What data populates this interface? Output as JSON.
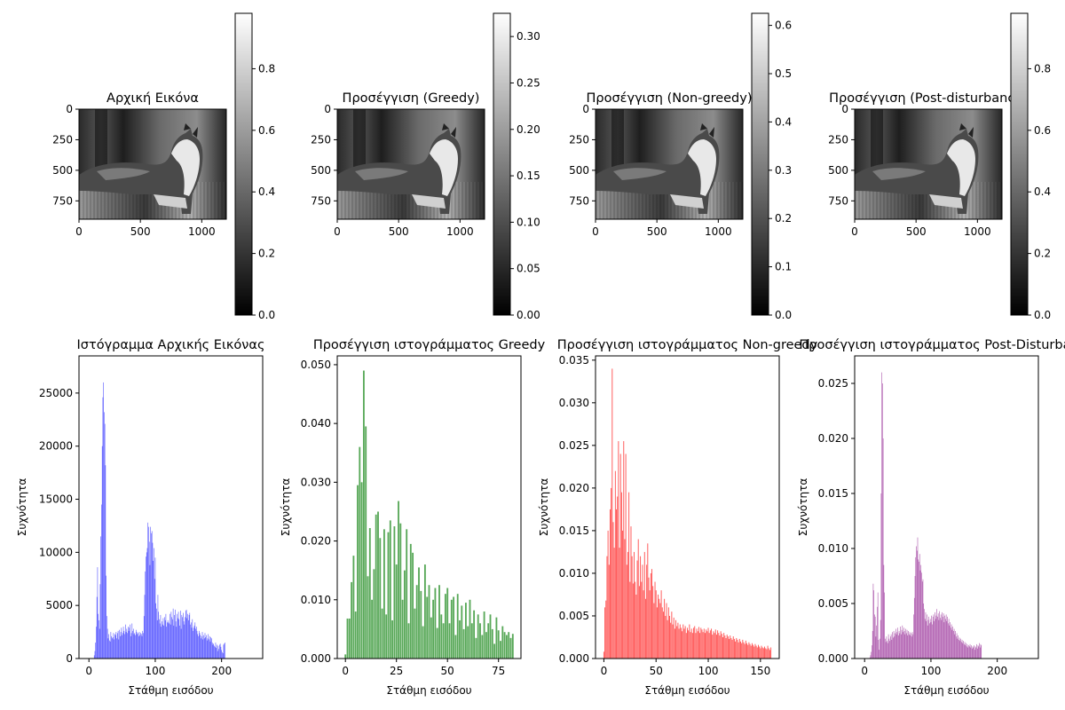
{
  "chart_data": [
    {
      "type": "heatmap",
      "title": "Αρχική Εικόνα",
      "xticks": [
        "0",
        "500",
        "1000"
      ],
      "yticks": [
        "0",
        "250",
        "500",
        "750"
      ],
      "image_extent": {
        "width": 1200,
        "height": 900
      },
      "colormap": "gray",
      "colorbar": {
        "range": [
          0,
          0.98
        ],
        "ticks": [
          "0.0",
          "0.2",
          "0.4",
          "0.6",
          "0.8"
        ],
        "tick_values": [
          0,
          0.2,
          0.4,
          0.6,
          0.8
        ]
      }
    },
    {
      "type": "heatmap",
      "title": "Προσέγγιση (Greedy)",
      "xticks": [
        "0",
        "500",
        "1000"
      ],
      "yticks": [
        "0",
        "250",
        "500",
        "750"
      ],
      "image_extent": {
        "width": 1200,
        "height": 900
      },
      "colormap": "gray",
      "colorbar": {
        "range": [
          0,
          0.325
        ],
        "ticks": [
          "0.00",
          "0.05",
          "0.10",
          "0.15",
          "0.20",
          "0.25",
          "0.30"
        ],
        "tick_values": [
          0,
          0.05,
          0.1,
          0.15,
          0.2,
          0.25,
          0.3
        ]
      }
    },
    {
      "type": "heatmap",
      "title": "Προσέγγιση (Non-greedy)",
      "xticks": [
        "0",
        "500",
        "1000"
      ],
      "yticks": [
        "0",
        "250",
        "500",
        "750"
      ],
      "image_extent": {
        "width": 1200,
        "height": 900
      },
      "colormap": "gray",
      "colorbar": {
        "range": [
          0,
          0.625
        ],
        "ticks": [
          "0.0",
          "0.1",
          "0.2",
          "0.3",
          "0.4",
          "0.5",
          "0.6"
        ],
        "tick_values": [
          0,
          0.1,
          0.2,
          0.3,
          0.4,
          0.5,
          0.6
        ]
      }
    },
    {
      "type": "heatmap",
      "title": "Προσέγγιση (Post-disturbance)",
      "xticks": [
        "0",
        "500",
        "1000"
      ],
      "yticks": [
        "0",
        "250",
        "500",
        "750"
      ],
      "image_extent": {
        "width": 1200,
        "height": 900
      },
      "colormap": "gray",
      "colorbar": {
        "range": [
          0,
          0.98
        ],
        "ticks": [
          "0.0",
          "0.2",
          "0.4",
          "0.6",
          "0.8"
        ],
        "tick_values": [
          0,
          0.2,
          0.4,
          0.6,
          0.8
        ]
      }
    },
    {
      "type": "bar",
      "title": "Ιστόγραμμα Αρχικής Εικόνας",
      "xlabel": "Στάθμη εισόδου",
      "ylabel": "Συχνότητα",
      "color": "#4b4bff",
      "xlim": [
        -15,
        262
      ],
      "ylim": [
        0,
        28500
      ],
      "xticks": [
        0,
        100,
        200
      ],
      "yticks": [
        0,
        5000,
        10000,
        15000,
        20000,
        25000
      ],
      "x_start": 0,
      "x_step": 1,
      "values": [
        0,
        0,
        0,
        0,
        0,
        0,
        0,
        0,
        300,
        700,
        1500,
        3000,
        5800,
        8600,
        4200,
        3600,
        2800,
        7000,
        11500,
        14500,
        20000,
        24600,
        26000,
        23200,
        22100,
        18200,
        7800,
        4000,
        2800,
        1900,
        2300,
        1700,
        1600,
        2500,
        2100,
        1900,
        2000,
        2400,
        1800,
        2300,
        2200,
        2500,
        1900,
        2400,
        2600,
        1800,
        2700,
        2100,
        2500,
        2900,
        2200,
        2400,
        3000,
        2600,
        2300,
        3200,
        2500,
        2800,
        2400,
        3000,
        2600,
        2900,
        3200,
        2100,
        2400,
        3300,
        2600,
        2800,
        2300,
        2400,
        2200,
        2700,
        2500,
        2300,
        2400,
        2100,
        2500,
        2200,
        2400,
        2300,
        2100,
        2600,
        2400,
        4000,
        6000,
        8200,
        9600,
        10000,
        10400,
        12800,
        12400,
        11000,
        8800,
        12400,
        11800,
        12000,
        10900,
        9200,
        10400,
        7500,
        9500,
        5200,
        4700,
        3600,
        6000,
        4400,
        3700,
        3300,
        4100,
        3000,
        3500,
        3200,
        3800,
        3100,
        3900,
        3600,
        4200,
        3000,
        3400,
        3600,
        3400,
        3300,
        4200,
        3200,
        4400,
        3900,
        3700,
        4700,
        3100,
        4100,
        4600,
        3500,
        3000,
        4200,
        3800,
        4400,
        3700,
        3100,
        4500,
        2800,
        4100,
        3900,
        4300,
        3500,
        3200,
        3900,
        4500,
        4600,
        3800,
        4200,
        3600,
        4100,
        4300,
        3200,
        3400,
        2900,
        3700,
        2600,
        2900,
        3100,
        3400,
        2800,
        3000,
        2600,
        2300,
        2100,
        2600,
        2400,
        2200,
        1900,
        2100,
        2500,
        1800,
        2200,
        1900,
        2400,
        2000,
        2200,
        1700,
        1900,
        2300,
        1800,
        2100,
        1600,
        2000,
        1900,
        1500,
        1300,
        1400,
        1200,
        1100,
        1500,
        1000,
        1300,
        700,
        1200,
        900,
        1300,
        1400,
        1100,
        800,
        600,
        500,
        1300,
        1400,
        1500
      ]
    },
    {
      "type": "bar",
      "title": "Προσέγγιση ιστογράμματος Greedy",
      "xlabel": "Στάθμη εισόδου",
      "ylabel": "Συχνότητα",
      "color": "#4fa34f",
      "xlim": [
        -4,
        86
      ],
      "ylim": [
        0,
        0.0515
      ],
      "xticks": [
        0,
        25,
        50,
        75
      ],
      "yticks": [
        0,
        0.01,
        0.02,
        0.03,
        0.04,
        0.05
      ],
      "x_start": 0,
      "x_step": 1,
      "values": [
        0.0007,
        0.0068,
        0.0068,
        0.013,
        0.0175,
        0.008,
        0.0295,
        0.036,
        0.03,
        0.049,
        0.0395,
        0.014,
        0.0222,
        0.01,
        0.0152,
        0.0245,
        0.025,
        0.0205,
        0.0085,
        0.022,
        0.0075,
        0.0215,
        0.0235,
        0.0065,
        0.0225,
        0.016,
        0.0268,
        0.023,
        0.01,
        0.015,
        0.022,
        0.006,
        0.0195,
        0.018,
        0.0085,
        0.0125,
        0.0155,
        0.0115,
        0.0055,
        0.016,
        0.0105,
        0.0125,
        0.007,
        0.01,
        0.012,
        0.0052,
        0.0125,
        0.0075,
        0.006,
        0.011,
        0.012,
        0.006,
        0.01,
        0.0105,
        0.004,
        0.011,
        0.0065,
        0.009,
        0.005,
        0.0095,
        0.0055,
        0.01,
        0.006,
        0.0082,
        0.0035,
        0.0075,
        0.006,
        0.004,
        0.008,
        0.0045,
        0.006,
        0.0075,
        0.005,
        0.0025,
        0.007,
        0.0048,
        0.003,
        0.0055,
        0.0045,
        0.004,
        0.0045,
        0.0035,
        0.0042
      ]
    },
    {
      "type": "bar",
      "title": "Προσέγγιση ιστογράμματος Non-greedy",
      "xlabel": "Στάθμη εισόδου",
      "ylabel": "Συχνότητα",
      "color": "#ff4b4b",
      "xlim": [
        -8,
        168
      ],
      "ylim": [
        0,
        0.0355
      ],
      "xticks": [
        0,
        50,
        100,
        150
      ],
      "yticks": [
        0,
        0.005,
        0.01,
        0.015,
        0.02,
        0.025,
        0.03,
        0.035
      ],
      "x_start": 0,
      "x_step": 1,
      "values": [
        0.0008,
        0.006,
        0.0068,
        0.012,
        0.015,
        0.011,
        0.0175,
        0.02,
        0.034,
        0.016,
        0.013,
        0.022,
        0.0175,
        0.019,
        0.0255,
        0.013,
        0.024,
        0.0195,
        0.015,
        0.0255,
        0.014,
        0.024,
        0.011,
        0.0125,
        0.0195,
        0.009,
        0.0155,
        0.012,
        0.0088,
        0.0125,
        0.009,
        0.0075,
        0.0115,
        0.014,
        0.0085,
        0.012,
        0.009,
        0.011,
        0.008,
        0.0125,
        0.007,
        0.011,
        0.0135,
        0.0095,
        0.008,
        0.01,
        0.0105,
        0.0085,
        0.0065,
        0.009,
        0.008,
        0.006,
        0.0075,
        0.007,
        0.0065,
        0.008,
        0.006,
        0.0055,
        0.007,
        0.005,
        0.0065,
        0.0045,
        0.006,
        0.005,
        0.0042,
        0.0055,
        0.004,
        0.0048,
        0.0035,
        0.0045,
        0.0038,
        0.0042,
        0.0035,
        0.004,
        0.0036,
        0.0032,
        0.004,
        0.0035,
        0.0038,
        0.003,
        0.0036,
        0.0033,
        0.004,
        0.0031,
        0.0035,
        0.003,
        0.0036,
        0.0038,
        0.003,
        0.0035,
        0.0032,
        0.0037,
        0.003,
        0.0036,
        0.0034,
        0.0031,
        0.0035,
        0.003,
        0.0034,
        0.0032,
        0.0036,
        0.003,
        0.0033,
        0.0035,
        0.0028,
        0.0032,
        0.003,
        0.0034,
        0.0028,
        0.0033,
        0.003,
        0.0027,
        0.0032,
        0.0029,
        0.0025,
        0.003,
        0.0027,
        0.0024,
        0.0028,
        0.0026,
        0.0023,
        0.0027,
        0.0024,
        0.0022,
        0.0026,
        0.0023,
        0.002,
        0.0024,
        0.0022,
        0.0019,
        0.0023,
        0.002,
        0.0018,
        0.0022,
        0.0019,
        0.0017,
        0.0021,
        0.0018,
        0.0016,
        0.0019,
        0.0017,
        0.0015,
        0.0018,
        0.0016,
        0.0014,
        0.0017,
        0.0015,
        0.0013,
        0.0016,
        0.0014,
        0.0012,
        0.0015,
        0.0013,
        0.0012,
        0.0014,
        0.0012,
        0.0011,
        0.0015,
        0.0012,
        0.001,
        0.0013
      ]
    },
    {
      "type": "bar",
      "title": "Προσέγγιση ιστογράμματος Post-Disturbance",
      "xlabel": "Στάθμη εισόδου",
      "ylabel": "Συχνότητα",
      "color": "#a64ca6",
      "xlim": [
        -15,
        262
      ],
      "ylim": [
        0,
        0.0275
      ],
      "xticks": [
        0,
        100,
        200
      ],
      "yticks": [
        0,
        0.005,
        0.01,
        0.015,
        0.02,
        0.025
      ],
      "x_start": 0,
      "x_step": 1,
      "values": [
        0,
        0,
        0,
        0,
        0,
        0,
        0,
        0,
        0.0001,
        0.0003,
        0.0006,
        0.0012,
        0.0025,
        0.0068,
        0.0062,
        0.004,
        0.0038,
        0.002,
        0.003,
        0.0047,
        0.006,
        0.0017,
        0.0008,
        0.0018,
        0.0035,
        0.015,
        0.026,
        0.025,
        0.02,
        0.0085,
        0.006,
        0.0018,
        0.0015,
        0.002,
        0.0016,
        0.0014,
        0.0022,
        0.0018,
        0.0016,
        0.002,
        0.0022,
        0.0017,
        0.0024,
        0.0019,
        0.0025,
        0.002,
        0.0023,
        0.0027,
        0.0022,
        0.0024,
        0.0028,
        0.0021,
        0.0025,
        0.0023,
        0.0029,
        0.0022,
        0.0026,
        0.003,
        0.0024,
        0.0028,
        0.0025,
        0.0022,
        0.0027,
        0.0023,
        0.0026,
        0.0021,
        0.0025,
        0.0022,
        0.0024,
        0.0021,
        0.0023,
        0.002,
        0.0024,
        0.0022,
        0.004,
        0.0055,
        0.0075,
        0.0092,
        0.0102,
        0.0098,
        0.011,
        0.009,
        0.0088,
        0.0095,
        0.008,
        0.0085,
        0.0078,
        0.007,
        0.0072,
        0.005,
        0.0045,
        0.0036,
        0.0042,
        0.0034,
        0.004,
        0.003,
        0.0035,
        0.0038,
        0.0032,
        0.0036,
        0.0033,
        0.0039,
        0.0031,
        0.0038,
        0.004,
        0.0034,
        0.0042,
        0.0036,
        0.0039,
        0.0045,
        0.0038,
        0.0041,
        0.0035,
        0.0043,
        0.0037,
        0.004,
        0.0035,
        0.0042,
        0.0038,
        0.0041,
        0.0033,
        0.0039,
        0.0036,
        0.004,
        0.0034,
        0.0038,
        0.0032,
        0.0036,
        0.003,
        0.0033,
        0.0028,
        0.0031,
        0.0026,
        0.0029,
        0.0025,
        0.0027,
        0.0022,
        0.0025,
        0.002,
        0.0023,
        0.0018,
        0.0021,
        0.0017,
        0.0019,
        0.0016,
        0.0018,
        0.0015,
        0.0017,
        0.0014,
        0.0016,
        0.0013,
        0.0015,
        0.0012,
        0.0014,
        0.0011,
        0.0013,
        0.001,
        0.0012,
        0.0011,
        0.0013,
        0.001,
        0.0012,
        0.0009,
        0.0011,
        0.001,
        0.0012,
        0.0008,
        0.0011,
        0.001,
        0.0013,
        0.0009,
        0.0012,
        0.0011,
        0.0014,
        0.001,
        0.0013,
        0.0012
      ]
    }
  ]
}
